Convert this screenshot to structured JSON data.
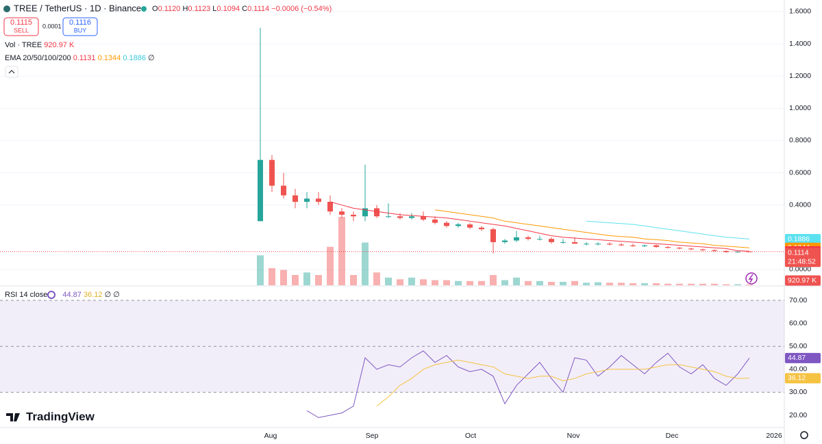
{
  "header": {
    "symbol": "TREE / TetherUS · 1D · Binance",
    "ohlc": [
      {
        "key": "O",
        "value": 0.112,
        "label": "0.1120"
      },
      {
        "key": "H",
        "value": 0.1123,
        "label": "0.1123"
      },
      {
        "key": "L",
        "value": 0.1094,
        "label": "0.1094"
      },
      {
        "key": "C",
        "value": 0.1114,
        "label": "0.1114"
      }
    ],
    "change": "−0.0006 (−0.54%)",
    "sell": {
      "price": 0.1115,
      "label": "SELL"
    },
    "spread": 0.0001,
    "buy": {
      "price": 0.1116,
      "label": "BUY"
    }
  },
  "chart_data": [
    {
      "type": "candlestick",
      "volume_title": "Vol · TREE",
      "ema_title": "EMA 20/50/100/200",
      "ema_empty": "∅",
      "countdown": "21:48:52",
      "candles": {
        "open": [
          0.3,
          0.68,
          0.52,
          0.46,
          0.42,
          0.44,
          0.42,
          0.36,
          0.34,
          0.33,
          0.38,
          0.33,
          0.33,
          0.32,
          0.33,
          0.31,
          0.29,
          0.27,
          0.28,
          0.26,
          0.25,
          0.17,
          0.18,
          0.2,
          0.19,
          0.19,
          0.17,
          0.17,
          0.16,
          0.16,
          0.16,
          0.155,
          0.15,
          0.145,
          0.15,
          0.14,
          0.135,
          0.13,
          0.125,
          0.12,
          0.115,
          0.108,
          0.112
        ],
        "high": [
          1.5,
          0.71,
          0.6,
          0.5,
          0.48,
          0.48,
          0.46,
          0.38,
          0.36,
          0.65,
          0.4,
          0.41,
          0.35,
          0.35,
          0.36,
          0.33,
          0.3,
          0.29,
          0.29,
          0.27,
          0.26,
          0.19,
          0.24,
          0.21,
          0.21,
          0.2,
          0.19,
          0.2,
          0.17,
          0.17,
          0.17,
          0.165,
          0.16,
          0.155,
          0.155,
          0.145,
          0.14,
          0.135,
          0.13,
          0.125,
          0.12,
          0.115,
          0.1123
        ],
        "low": [
          0.3,
          0.48,
          0.44,
          0.38,
          0.38,
          0.4,
          0.34,
          0.32,
          0.3,
          0.3,
          0.32,
          0.32,
          0.31,
          0.31,
          0.3,
          0.28,
          0.26,
          0.26,
          0.25,
          0.24,
          0.1,
          0.16,
          0.17,
          0.18,
          0.18,
          0.16,
          0.16,
          0.16,
          0.15,
          0.15,
          0.15,
          0.145,
          0.14,
          0.14,
          0.135,
          0.13,
          0.125,
          0.12,
          0.115,
          0.11,
          0.105,
          0.105,
          0.1094
        ],
        "close": [
          0.68,
          0.52,
          0.46,
          0.42,
          0.44,
          0.42,
          0.36,
          0.34,
          0.33,
          0.38,
          0.33,
          0.33,
          0.32,
          0.33,
          0.31,
          0.29,
          0.27,
          0.28,
          0.26,
          0.25,
          0.17,
          0.18,
          0.2,
          0.19,
          0.19,
          0.17,
          0.17,
          0.16,
          0.16,
          0.16,
          0.155,
          0.15,
          0.145,
          0.15,
          0.14,
          0.135,
          0.13,
          0.125,
          0.12,
          0.115,
          0.108,
          0.111,
          0.1114
        ]
      },
      "up_color": "#26a69a",
      "down_color": "#ef5350",
      "volume": [
        35000000,
        20000000,
        18000000,
        12000000,
        15000000,
        12000000,
        45000000,
        80000000,
        12000000,
        50000000,
        15000000,
        9000000,
        7000000,
        9000000,
        7000000,
        6000000,
        6000000,
        5000000,
        5000000,
        5000000,
        12000000,
        6000000,
        9000000,
        5000000,
        5000000,
        4000000,
        4000000,
        5000000,
        3000000,
        3600000,
        3000000,
        3000000,
        2400000,
        2400000,
        2400000,
        1800000,
        1800000,
        1800000,
        1800000,
        1800000,
        1200000,
        1200000,
        920970
      ],
      "volume_last_label": "920.97 K",
      "lines": [
        {
          "color": "#f23645",
          "values": [
            null,
            null,
            null,
            null,
            null,
            null,
            0.42,
            0.4,
            0.38,
            0.37,
            0.36,
            0.35,
            0.34,
            0.335,
            0.33,
            0.325,
            0.32,
            0.31,
            0.3,
            0.29,
            0.28,
            0.27,
            0.255,
            0.24,
            0.225,
            0.21,
            0.2,
            0.195,
            0.19,
            0.185,
            0.18,
            0.175,
            0.17,
            0.165,
            0.16,
            0.155,
            0.15,
            0.145,
            0.14,
            0.135,
            0.13,
            0.1165,
            0.1131
          ]
        },
        {
          "color": "#ff9800",
          "values": [
            null,
            null,
            null,
            null,
            null,
            null,
            null,
            null,
            null,
            null,
            null,
            null,
            null,
            null,
            null,
            0.37,
            0.36,
            0.35,
            0.34,
            0.33,
            0.32,
            0.3,
            0.29,
            0.28,
            0.27,
            0.26,
            0.25,
            0.24,
            0.23,
            0.22,
            0.21,
            0.205,
            0.2,
            0.19,
            0.185,
            0.18,
            0.17,
            0.165,
            0.16,
            0.15,
            0.145,
            0.14,
            0.1344
          ]
        },
        {
          "color": "#5ce1f0",
          "values": [
            null,
            null,
            null,
            null,
            null,
            null,
            null,
            null,
            null,
            null,
            null,
            null,
            null,
            null,
            null,
            null,
            null,
            null,
            null,
            null,
            null,
            null,
            null,
            null,
            null,
            null,
            null,
            null,
            0.3,
            0.295,
            0.29,
            0.285,
            0.28,
            0.27,
            0.26,
            0.25,
            0.24,
            0.23,
            0.22,
            0.21,
            0.2,
            0.195,
            0.1886
          ]
        }
      ],
      "ylim": [
        -0.102,
        1.672
      ],
      "yticks": [
        {
          "value": 1.6,
          "label": "1.6000"
        },
        {
          "value": 1.4,
          "label": "1.4000"
        },
        {
          "value": 1.2,
          "label": "1.2000"
        },
        {
          "value": 1.0,
          "label": "1.0000"
        },
        {
          "value": 0.8,
          "label": "0.8000"
        },
        {
          "value": 0.6,
          "label": "0.6000"
        },
        {
          "value": 0.4,
          "label": "0.4000"
        },
        {
          "value": 0,
          "label": "0.0000"
        }
      ]
    },
    {
      "type": "line",
      "title": "RSI 14 close",
      "empty": "∅",
      "series": [
        {
          "color": "#7e57c2",
          "values": [
            null,
            null,
            null,
            null,
            22,
            19,
            20,
            21,
            24,
            45,
            40,
            42,
            41,
            45,
            48,
            43,
            46,
            41,
            39,
            40,
            37,
            25,
            33,
            38,
            43,
            36,
            30,
            45,
            44,
            37,
            41,
            46,
            42,
            38,
            43,
            47,
            41,
            38,
            42,
            36,
            33,
            38,
            44.87
          ]
        },
        {
          "color": "#f5c242",
          "values": [
            null,
            null,
            null,
            null,
            null,
            null,
            null,
            null,
            null,
            null,
            24,
            28,
            33,
            36,
            40,
            42,
            43,
            44,
            43,
            42,
            41,
            38,
            37,
            36,
            37,
            37,
            35,
            36,
            38,
            39,
            40,
            40,
            40,
            40,
            41,
            42,
            42,
            41,
            40,
            39,
            37,
            36,
            36.12
          ]
        }
      ],
      "ylim": [
        14.64,
        76.25
      ],
      "yticks": [
        {
          "value": 70,
          "label": "70.00"
        },
        {
          "value": 60,
          "label": "60.00"
        },
        {
          "value": 50,
          "label": "50.00"
        },
        {
          "value": 40,
          "label": "40.00"
        },
        {
          "value": 30,
          "label": "30.00"
        },
        {
          "value": 20,
          "label": "20.00"
        }
      ],
      "band": [
        30,
        70
      ],
      "levels": [
        70,
        50,
        30
      ]
    }
  ],
  "x_axis": [
    "Aug",
    "Sep",
    "Oct",
    "Nov",
    "Dec",
    "2026"
  ],
  "brand": "TradingView"
}
